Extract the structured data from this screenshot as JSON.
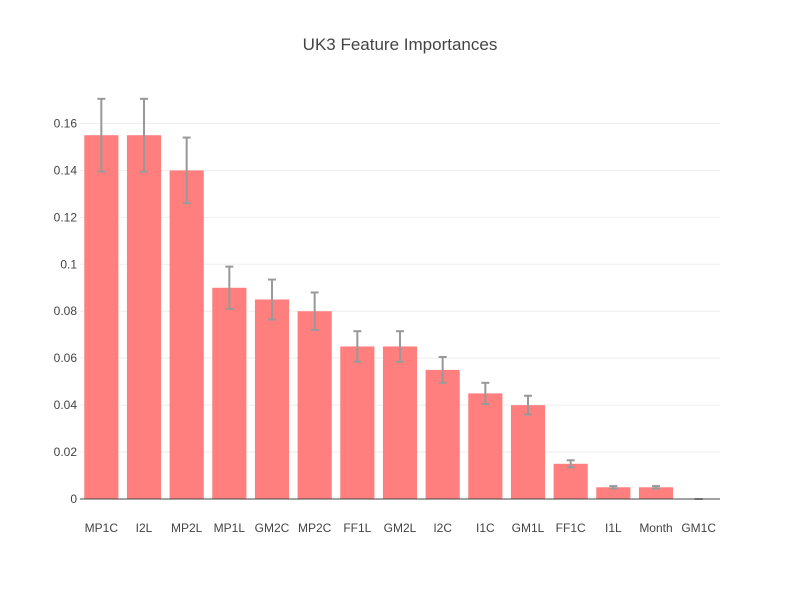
{
  "chart_data": {
    "type": "bar",
    "title": "UK3 Feature Importances",
    "xlabel": "",
    "ylabel": "",
    "categories": [
      "MP1C",
      "I2L",
      "MP2L",
      "MP1L",
      "GM2C",
      "MP2C",
      "FF1L",
      "GM2L",
      "I2C",
      "I1C",
      "GM1L",
      "FF1C",
      "I1L",
      "Month",
      "GM1C"
    ],
    "values": [
      0.155,
      0.155,
      0.14,
      0.09,
      0.085,
      0.08,
      0.065,
      0.065,
      0.055,
      0.045,
      0.04,
      0.015,
      0.005,
      0.005,
      0.0
    ],
    "error": [
      0.0155,
      0.0155,
      0.014,
      0.009,
      0.0085,
      0.008,
      0.0065,
      0.0065,
      0.0055,
      0.0045,
      0.004,
      0.0015,
      0.0005,
      0.0005,
      0.0
    ],
    "ylim": [
      0,
      0.17
    ],
    "yticks": [
      0,
      0.02,
      0.04,
      0.06,
      0.08,
      0.1,
      0.12,
      0.14,
      0.16
    ],
    "ytick_labels": [
      "0",
      "0.02",
      "0.04",
      "0.06",
      "0.08",
      "0.1",
      "0.12",
      "0.14",
      "0.16"
    ],
    "grid": true,
    "legend": "none",
    "colors": {
      "bar": "#ff7f7f",
      "error_bar": "#999999",
      "grid": "#eeeeee",
      "axis": "#444444",
      "text": "#444444"
    }
  }
}
